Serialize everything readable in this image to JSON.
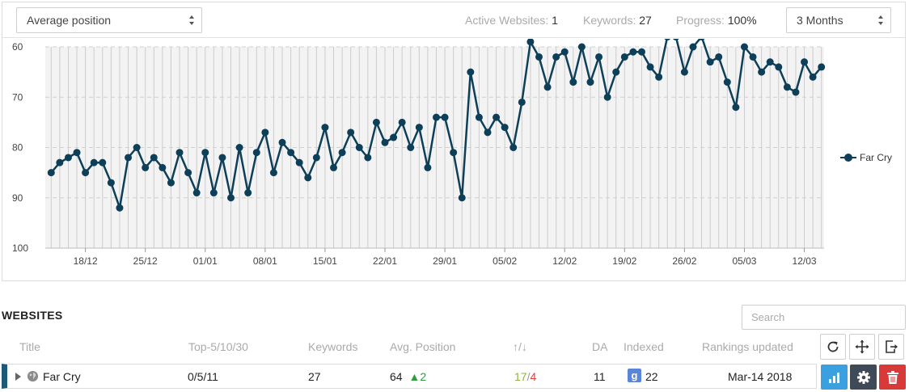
{
  "toolbar": {
    "metric_select": "Average position",
    "range_select": "3 Months",
    "active_websites_label": "Active Websites:",
    "active_websites_value": "1",
    "keywords_label": "Keywords:",
    "keywords_value": "27",
    "progress_label": "Progress:",
    "progress_value": "100%"
  },
  "chart_data": {
    "type": "line",
    "title": "",
    "xlabel": "",
    "ylabel": "",
    "y_inverted": true,
    "ylim": [
      60,
      100
    ],
    "y_ticks": [
      60,
      70,
      80,
      90,
      100
    ],
    "x_tick_labels": [
      "18/12",
      "25/12",
      "01/01",
      "08/01",
      "15/01",
      "22/01",
      "29/01",
      "05/02",
      "12/02",
      "19/02",
      "26/02",
      "05/03",
      "12/03"
    ],
    "x_tick_index": [
      4,
      11,
      18,
      25,
      32,
      39,
      46,
      53,
      60,
      67,
      74,
      81,
      88
    ],
    "grid": true,
    "legend_position": "right",
    "color": "#0e3f59",
    "series": [
      {
        "name": "Far Cry",
        "values": [
          85,
          83,
          82,
          81,
          85,
          83,
          83,
          87,
          92,
          82,
          80,
          84,
          82,
          84,
          87,
          81,
          85,
          89,
          81,
          89,
          82,
          90,
          80,
          89,
          81,
          77,
          85,
          79,
          81,
          83,
          86,
          82,
          76,
          84,
          81,
          77,
          80,
          82,
          75,
          79,
          78,
          75,
          80,
          76,
          84,
          74,
          74,
          81,
          90,
          65,
          74,
          77,
          74,
          76,
          80,
          71,
          59,
          62,
          68,
          62,
          61,
          67,
          60,
          67,
          62,
          70,
          65,
          62,
          61,
          61,
          64,
          66,
          58,
          58,
          65,
          60,
          58,
          63,
          62,
          67,
          72,
          60,
          62,
          65,
          63,
          64,
          68,
          69,
          63,
          66,
          64
        ]
      }
    ]
  },
  "websites": {
    "title": "WEBSITES",
    "search_placeholder": "Search",
    "columns": {
      "title": "Title",
      "top": "Top-5/10/30",
      "keywords": "Keywords",
      "avg_position": "Avg. Position",
      "updown": "↑/↓",
      "da": "DA",
      "indexed": "Indexed",
      "rankings_updated": "Rankings updated"
    },
    "rows": [
      {
        "title": "Far Cry",
        "top": "0/5/11",
        "keywords": "27",
        "avg_position": "64",
        "avg_change": "2",
        "up": "17",
        "sep": "/",
        "down": "4",
        "da": "11",
        "indexed_badge": "g",
        "indexed": "22",
        "rankings_updated": "Mar-14 2018"
      }
    ]
  },
  "icons": {
    "refresh": "refresh-icon",
    "move": "move-icon",
    "export": "export-icon",
    "stats": "bar-chart-icon",
    "settings": "gear-icon",
    "delete": "trash-icon",
    "globe": "globe-icon"
  },
  "colors": {
    "series": "#0e3f59",
    "row_accent": "#1d5a78",
    "up": "#8bb43a",
    "down": "#d94040",
    "change_up": "#2e9e3e",
    "stats_button": "#3aa0e0",
    "settings_button": "#3f4a58",
    "delete_button": "#d83a3a",
    "google_badge": "#5b86d8"
  }
}
